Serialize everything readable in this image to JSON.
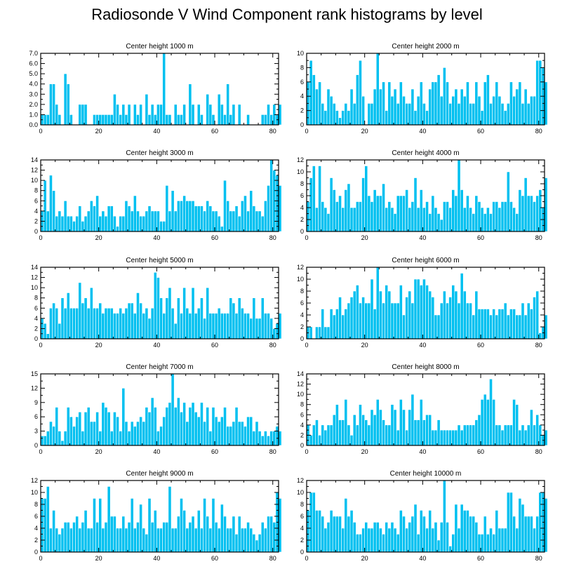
{
  "title": "Radiosonde V Wind Component rank histograms by level",
  "colors": {
    "bar": "#00c0f0",
    "bar_edge": "#ffffff",
    "axis": "#000000"
  },
  "chart_data": [
    {
      "type": "bar",
      "title": "Center height 1000 m",
      "xlim": [
        0,
        82
      ],
      "xticks": [
        0,
        20,
        40,
        60,
        80
      ],
      "xtick_labels": [
        "0",
        "20",
        "40",
        "60",
        "80"
      ],
      "ylim": [
        0,
        7
      ],
      "yticks": [
        0,
        1,
        2,
        3,
        4,
        5,
        6,
        7
      ],
      "ytick_labels": [
        "0.0",
        "1.0",
        "2.0",
        "3.0",
        "4.0",
        "5.0",
        "6.0",
        "7.0"
      ],
      "values": [
        1,
        1,
        1,
        4,
        4,
        2,
        1,
        0,
        5,
        4,
        1,
        0,
        0,
        2,
        2,
        2,
        0,
        0,
        1,
        1,
        1,
        1,
        1,
        1,
        1,
        3,
        2,
        1,
        2,
        1,
        2,
        0,
        2,
        1,
        2,
        0,
        3,
        1,
        2,
        1,
        2,
        2,
        7,
        1,
        1,
        0,
        2,
        1,
        1,
        2,
        0,
        4,
        2,
        0,
        2,
        1,
        0,
        3,
        2,
        1,
        0,
        3,
        2,
        1,
        4,
        1,
        2,
        0,
        2,
        0,
        0,
        1,
        0,
        0,
        0,
        0,
        1,
        1,
        2,
        1,
        2,
        1,
        2
      ]
    },
    {
      "type": "bar",
      "title": "Center height 2000 m",
      "xlim": [
        0,
        82
      ],
      "xticks": [
        0,
        20,
        40,
        60,
        80
      ],
      "xtick_labels": [
        "0",
        "20",
        "40",
        "60",
        "80"
      ],
      "ylim": [
        0,
        10
      ],
      "yticks": [
        0,
        2,
        4,
        6,
        8,
        10
      ],
      "ytick_labels": [
        "0",
        "2",
        "4",
        "6",
        "8",
        "10"
      ],
      "values": [
        6,
        9,
        7,
        5,
        6,
        3,
        2,
        5,
        4,
        3,
        2,
        1,
        2,
        3,
        2,
        5,
        3,
        7,
        9,
        4,
        0,
        3,
        3,
        5,
        10,
        5,
        6,
        2,
        6,
        4,
        5,
        3,
        6,
        4,
        3,
        3,
        5,
        2,
        4,
        6,
        3,
        2,
        5,
        6,
        6,
        7,
        4,
        8,
        6,
        3,
        4,
        5,
        3,
        5,
        4,
        6,
        3,
        3,
        6,
        4,
        2,
        6,
        7,
        3,
        4,
        6,
        4,
        3,
        2,
        3,
        6,
        4,
        5,
        6,
        3,
        5,
        3,
        4,
        4,
        9,
        9,
        8,
        6
      ]
    },
    {
      "type": "bar",
      "title": "Center height 3000 m",
      "xlim": [
        0,
        82
      ],
      "xticks": [
        0,
        20,
        40,
        60,
        80
      ],
      "xtick_labels": [
        "0",
        "20",
        "40",
        "60",
        "80"
      ],
      "ylim": [
        0,
        14
      ],
      "yticks": [
        0,
        2,
        4,
        6,
        8,
        10,
        12,
        14
      ],
      "ytick_labels": [
        "0",
        "2",
        "4",
        "6",
        "8",
        "10",
        "12",
        "14"
      ],
      "values": [
        4,
        10,
        4,
        11,
        8,
        3,
        4,
        3,
        6,
        3,
        3,
        2,
        3,
        5,
        2,
        3,
        4,
        6,
        5,
        7,
        3,
        4,
        3,
        5,
        5,
        3,
        1,
        3,
        3,
        6,
        5,
        4,
        7,
        4,
        3,
        3,
        4,
        5,
        4,
        4,
        4,
        2,
        2,
        9,
        4,
        8,
        4,
        6,
        6,
        7,
        6,
        6,
        6,
        5,
        5,
        5,
        4,
        6,
        5,
        4,
        4,
        3,
        1,
        10,
        6,
        4,
        4,
        5,
        3,
        6,
        7,
        4,
        8,
        5,
        4,
        4,
        3,
        6,
        9,
        14,
        12,
        11,
        9
      ]
    },
    {
      "type": "bar",
      "title": "Center height 4000 m",
      "xlim": [
        0,
        82
      ],
      "xticks": [
        0,
        20,
        40,
        60,
        80
      ],
      "xtick_labels": [
        "0",
        "20",
        "40",
        "60",
        "80"
      ],
      "ylim": [
        0,
        12
      ],
      "yticks": [
        0,
        2,
        4,
        6,
        8,
        10,
        12
      ],
      "ytick_labels": [
        "0",
        "2",
        "4",
        "6",
        "8",
        "10",
        "12"
      ],
      "values": [
        5,
        9,
        11,
        4,
        11,
        5,
        4,
        3,
        9,
        7,
        5,
        6,
        4,
        7,
        8,
        4,
        4,
        5,
        5,
        9,
        11,
        6,
        5,
        7,
        6,
        6,
        8,
        4,
        5,
        4,
        3,
        6,
        6,
        6,
        7,
        4,
        5,
        9,
        4,
        7,
        4,
        5,
        3,
        6,
        4,
        3,
        2,
        5,
        5,
        4,
        7,
        6,
        12,
        7,
        4,
        6,
        4,
        3,
        6,
        5,
        4,
        3,
        4,
        3,
        5,
        5,
        4,
        5,
        5,
        10,
        5,
        4,
        3,
        7,
        6,
        9,
        6,
        6,
        5,
        6,
        7,
        4,
        9
      ]
    },
    {
      "type": "bar",
      "title": "Center height 5000 m",
      "xlim": [
        0,
        82
      ],
      "xticks": [
        0,
        20,
        40,
        60,
        80
      ],
      "xtick_labels": [
        "0",
        "20",
        "40",
        "60",
        "80"
      ],
      "ylim": [
        0,
        14
      ],
      "yticks": [
        0,
        2,
        4,
        6,
        8,
        10,
        12,
        14
      ],
      "ytick_labels": [
        "0",
        "2",
        "4",
        "6",
        "8",
        "10",
        "12",
        "14"
      ],
      "values": [
        4,
        3,
        1,
        6,
        7,
        6,
        3,
        8,
        6,
        9,
        6,
        6,
        6,
        11,
        7,
        8,
        6,
        10,
        6,
        6,
        7,
        5,
        6,
        6,
        6,
        5,
        5,
        6,
        5,
        6,
        7,
        7,
        5,
        9,
        7,
        5,
        6,
        4,
        6,
        13,
        12,
        8,
        5,
        8,
        10,
        6,
        3,
        8,
        5,
        10,
        6,
        5,
        10,
        5,
        6,
        8,
        4,
        10,
        5,
        5,
        5,
        6,
        5,
        5,
        5,
        8,
        7,
        5,
        8,
        6,
        5,
        5,
        4,
        8,
        4,
        4,
        8,
        5,
        5,
        4,
        2,
        3,
        5
      ]
    },
    {
      "type": "bar",
      "title": "Center height 6000 m",
      "xlim": [
        0,
        82
      ],
      "xticks": [
        0,
        20,
        40,
        60,
        80
      ],
      "xtick_labels": [
        "0",
        "20",
        "40",
        "60",
        "80"
      ],
      "ylim": [
        0,
        12
      ],
      "yticks": [
        0,
        2,
        4,
        6,
        8,
        10,
        12
      ],
      "ytick_labels": [
        "0",
        "2",
        "4",
        "6",
        "8",
        "10",
        "12"
      ],
      "values": [
        2,
        2,
        0,
        2,
        2,
        5,
        2,
        2,
        5,
        4,
        5,
        7,
        4,
        5,
        6,
        7,
        8,
        9,
        6,
        7,
        6,
        6,
        10,
        5,
        12,
        8,
        6,
        9,
        8,
        6,
        6,
        6,
        9,
        4,
        7,
        8,
        6,
        10,
        10,
        9,
        10,
        9,
        8,
        7,
        4,
        4,
        6,
        8,
        6,
        7,
        9,
        8,
        6,
        11,
        8,
        6,
        6,
        4,
        8,
        5,
        5,
        5,
        5,
        4,
        5,
        4,
        5,
        5,
        6,
        4,
        5,
        5,
        4,
        4,
        6,
        4,
        6,
        5,
        7,
        8,
        1,
        2,
        4
      ]
    },
    {
      "type": "bar",
      "title": "Center height 7000 m",
      "xlim": [
        0,
        82
      ],
      "xticks": [
        0,
        20,
        40,
        60,
        80
      ],
      "xtick_labels": [
        "0",
        "20",
        "40",
        "60",
        "80"
      ],
      "ylim": [
        0,
        15
      ],
      "yticks": [
        0,
        3,
        6,
        9,
        12,
        15
      ],
      "ytick_labels": [
        "0",
        "3",
        "6",
        "9",
        "12",
        "15"
      ],
      "values": [
        2,
        2,
        3,
        5,
        4,
        8,
        3,
        1,
        3,
        8,
        6,
        4,
        6,
        7,
        3,
        7,
        8,
        5,
        5,
        7,
        3,
        9,
        8,
        7,
        3,
        7,
        6,
        3,
        12,
        5,
        3,
        5,
        4,
        5,
        6,
        5,
        8,
        7,
        10,
        8,
        3,
        4,
        6,
        8,
        9,
        15,
        8,
        10,
        7,
        9,
        5,
        8,
        9,
        7,
        6,
        9,
        5,
        8,
        3,
        8,
        6,
        5,
        6,
        8,
        4,
        4,
        5,
        8,
        5,
        5,
        4,
        6,
        6,
        3,
        5,
        3,
        2,
        3,
        2,
        3,
        3,
        4,
        3
      ]
    },
    {
      "type": "bar",
      "title": "Center height 8000 m",
      "xlim": [
        0,
        82
      ],
      "xticks": [
        0,
        20,
        40,
        60,
        80
      ],
      "xtick_labels": [
        "0",
        "20",
        "40",
        "60",
        "80"
      ],
      "ylim": [
        0,
        14
      ],
      "yticks": [
        0,
        2,
        4,
        6,
        8,
        10,
        12,
        14
      ],
      "ytick_labels": [
        "0",
        "2",
        "4",
        "6",
        "8",
        "10",
        "12",
        "14"
      ],
      "values": [
        4,
        2,
        4,
        5,
        2,
        4,
        3,
        4,
        4,
        6,
        8,
        5,
        5,
        9,
        4,
        2,
        6,
        4,
        8,
        6,
        5,
        4,
        7,
        6,
        9,
        7,
        5,
        4,
        4,
        8,
        7,
        3,
        9,
        7,
        3,
        7,
        10,
        5,
        5,
        9,
        5,
        6,
        6,
        3,
        3,
        5,
        3,
        3,
        3,
        3,
        3,
        3,
        4,
        3,
        4,
        4,
        4,
        4,
        5,
        6,
        9,
        10,
        9,
        13,
        9,
        4,
        4,
        3,
        4,
        4,
        4,
        9,
        8,
        3,
        4,
        3,
        4,
        7,
        4,
        6,
        4,
        2,
        3
      ]
    },
    {
      "type": "bar",
      "title": "Center height 9000 m",
      "xlim": [
        0,
        82
      ],
      "xticks": [
        0,
        20,
        40,
        60,
        80
      ],
      "xtick_labels": [
        "0",
        "20",
        "40",
        "60",
        "80"
      ],
      "ylim": [
        0,
        12
      ],
      "yticks": [
        0,
        2,
        4,
        6,
        8,
        10,
        12
      ],
      "ytick_labels": [
        "0",
        "2",
        "4",
        "6",
        "8",
        "10",
        "12"
      ],
      "values": [
        9,
        9,
        11,
        4,
        7,
        4,
        3,
        4,
        5,
        5,
        4,
        5,
        6,
        4,
        5,
        7,
        4,
        4,
        9,
        5,
        9,
        4,
        5,
        11,
        6,
        6,
        4,
        4,
        6,
        4,
        5,
        9,
        4,
        5,
        8,
        4,
        3,
        9,
        5,
        7,
        4,
        4,
        5,
        5,
        11,
        4,
        4,
        6,
        9,
        7,
        4,
        5,
        6,
        4,
        7,
        4,
        9,
        6,
        4,
        9,
        5,
        4,
        8,
        6,
        4,
        4,
        6,
        3,
        6,
        4,
        4,
        5,
        4,
        3,
        2,
        3,
        5,
        4,
        6,
        6,
        5,
        10,
        9
      ]
    },
    {
      "type": "bar",
      "title": "Center height 10000 m",
      "xlim": [
        0,
        82
      ],
      "xticks": [
        0,
        20,
        40,
        60,
        80
      ],
      "xtick_labels": [
        "0",
        "20",
        "40",
        "60",
        "80"
      ],
      "ylim": [
        0,
        12
      ],
      "yticks": [
        0,
        2,
        4,
        6,
        8,
        10,
        12
      ],
      "ytick_labels": [
        "0",
        "2",
        "4",
        "6",
        "8",
        "10",
        "12"
      ],
      "values": [
        7,
        10,
        10,
        7,
        7,
        6,
        4,
        5,
        7,
        6,
        6,
        6,
        4,
        9,
        6,
        7,
        5,
        3,
        3,
        4,
        5,
        4,
        4,
        5,
        5,
        4,
        3,
        5,
        4,
        5,
        4,
        3,
        7,
        6,
        4,
        5,
        6,
        8,
        3,
        7,
        6,
        4,
        7,
        4,
        5,
        2,
        5,
        12,
        5,
        1,
        3,
        8,
        4,
        8,
        7,
        7,
        6,
        6,
        5,
        3,
        3,
        6,
        3,
        4,
        3,
        7,
        4,
        4,
        4,
        10,
        10,
        6,
        4,
        9,
        8,
        6,
        6,
        6,
        4,
        6,
        10,
        10,
        9
      ]
    }
  ]
}
